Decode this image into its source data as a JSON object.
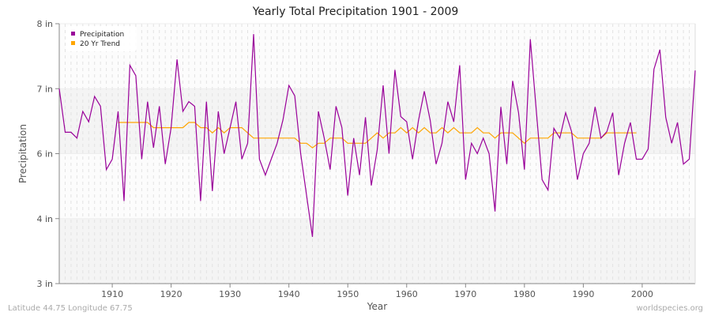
{
  "chart_data": {
    "type": "line",
    "title": "Yearly Total Precipitation 1901 - 2009",
    "xlabel": "Year",
    "ylabel": "Precipitation",
    "xlim": [
      1901,
      2009
    ],
    "x_ticks": [
      1910,
      1920,
      1930,
      1940,
      1950,
      1960,
      1970,
      1980,
      1990,
      2000
    ],
    "y_ticks": [
      3,
      4,
      6,
      7,
      8
    ],
    "y_tick_labels": [
      "3 in",
      "4 in",
      "6 in",
      "7 in",
      "8 in"
    ],
    "grid": true,
    "legend": "top-left",
    "series": [
      {
        "name": "Precipitation",
        "color": "#990099",
        "start_year": 1901,
        "values": [
          7.0,
          6.33,
          6.33,
          6.24,
          6.65,
          6.49,
          6.88,
          6.73,
          5.51,
          5.83,
          6.65,
          4.54,
          7.36,
          7.2,
          5.83,
          6.8,
          6.09,
          6.73,
          5.68,
          6.4,
          7.45,
          6.65,
          6.8,
          6.73,
          4.54,
          6.8,
          4.85,
          6.65,
          6.0,
          6.4,
          6.8,
          5.83,
          6.16,
          7.84,
          5.83,
          5.34,
          5.83,
          6.16,
          6.52,
          7.05,
          6.89,
          6.0,
          4.71,
          3.72,
          6.65,
          6.24,
          5.51,
          6.73,
          6.4,
          4.71,
          6.24,
          5.34,
          6.56,
          5.02,
          6.06,
          7.05,
          6.0,
          7.29,
          6.57,
          6.49,
          5.83,
          6.51,
          6.96,
          6.51,
          5.68,
          6.16,
          6.8,
          6.49,
          7.36,
          5.2,
          6.16,
          6.0,
          6.24,
          6.0,
          4.22,
          6.72,
          5.68,
          7.12,
          6.63,
          5.51,
          7.76,
          6.67,
          5.2,
          4.88,
          6.39,
          6.24,
          6.63,
          6.34,
          5.2,
          6.0,
          6.16,
          6.72,
          6.24,
          6.34,
          6.63,
          5.34,
          6.16,
          6.48,
          5.83,
          5.83,
          6.07,
          7.3,
          7.6,
          6.56,
          6.16,
          6.48,
          5.68,
          5.83,
          7.28
        ]
      },
      {
        "name": "20 Yr Trend",
        "color": "#ffa500",
        "start_year": 1911,
        "values": [
          6.48,
          6.48,
          6.48,
          6.48,
          6.48,
          6.48,
          6.4,
          6.4,
          6.4,
          6.4,
          6.4,
          6.4,
          6.48,
          6.48,
          6.4,
          6.4,
          6.32,
          6.4,
          6.32,
          6.4,
          6.4,
          6.4,
          6.32,
          6.24,
          6.24,
          6.24,
          6.24,
          6.24,
          6.24,
          6.24,
          6.24,
          6.16,
          6.16,
          6.09,
          6.16,
          6.16,
          6.24,
          6.24,
          6.24,
          6.16,
          6.16,
          6.16,
          6.16,
          6.24,
          6.32,
          6.24,
          6.32,
          6.32,
          6.4,
          6.32,
          6.4,
          6.32,
          6.4,
          6.32,
          6.32,
          6.4,
          6.32,
          6.4,
          6.32,
          6.32,
          6.32,
          6.4,
          6.32,
          6.32,
          6.24,
          6.32,
          6.32,
          6.32,
          6.24,
          6.16,
          6.24,
          6.24,
          6.24,
          6.24,
          6.32,
          6.32,
          6.32,
          6.32,
          6.24,
          6.24,
          6.24,
          6.24,
          6.24,
          6.32,
          6.32,
          6.32,
          6.32,
          6.32,
          6.32
        ]
      }
    ]
  },
  "footer": {
    "location": "Latitude 44.75 Longitude 67.75",
    "credit": "worldspecies.org"
  }
}
